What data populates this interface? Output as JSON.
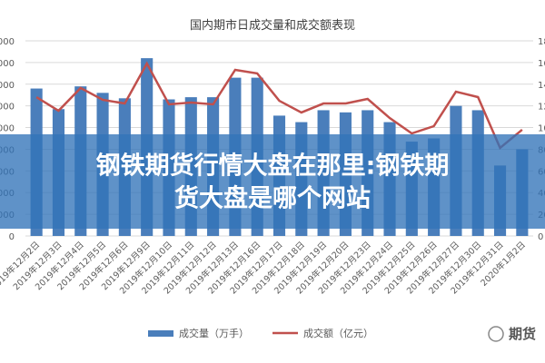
{
  "chart_data": {
    "type": "bar",
    "title": "国内期市日成交量和成交额表现",
    "categories": [
      "2019年12月2日",
      "2019年12月3日",
      "2019年12月4日",
      "2019年12月5日",
      "2019年12月6日",
      "2019年12月9日",
      "2019年12月10日",
      "2019年12月11日",
      "2019年12月12日",
      "2019年12月13日",
      "2019年12月16日",
      "2019年12月17日",
      "2019年12月18日",
      "2019年12月19日",
      "2019年12月20日",
      "2019年12月23日",
      "2019年12月24日",
      "2019年12月25日",
      "2019年12月26日",
      "2019年12月27日",
      "2019年12月30日",
      "2019年12月31日",
      "2020年1月2日"
    ],
    "series": [
      {
        "name": "成交量（万手）",
        "type": "bar",
        "color": "#4a7ebb",
        "values": [
          13600,
          11700,
          13800,
          13200,
          12700,
          16400,
          12600,
          12800,
          12800,
          14600,
          14600,
          11100,
          10500,
          11600,
          11400,
          11600,
          10500,
          8700,
          9000,
          12000,
          11600,
          6500,
          8000
        ]
      },
      {
        "name": "成交额（亿元）",
        "type": "line",
        "axis": "y2",
        "color": "#c0504d",
        "values": [
          1280,
          1155,
          1365,
          1256,
          1222,
          1591,
          1214,
          1231,
          1214,
          1532,
          1499,
          1247,
          1139,
          1222,
          1222,
          1264,
          1088,
          946,
          1013,
          1331,
          1281,
          812,
          980
        ]
      }
    ],
    "ylim": [
      0,
      18000
    ],
    "yticks": [
      0,
      2000,
      4000,
      6000,
      8000,
      10000,
      12000,
      14000,
      16000,
      18000
    ],
    "y2lim": [
      0,
      1800
    ],
    "y2ticks": [
      0,
      200,
      400,
      600,
      800,
      1000,
      1200,
      1400,
      1600,
      1800
    ],
    "grid": true
  },
  "overlay": {
    "headline": [
      "钢铁期货行情大盘在那里:钢铁期",
      "货大盘是哪个网站"
    ],
    "watermark": "期货"
  }
}
